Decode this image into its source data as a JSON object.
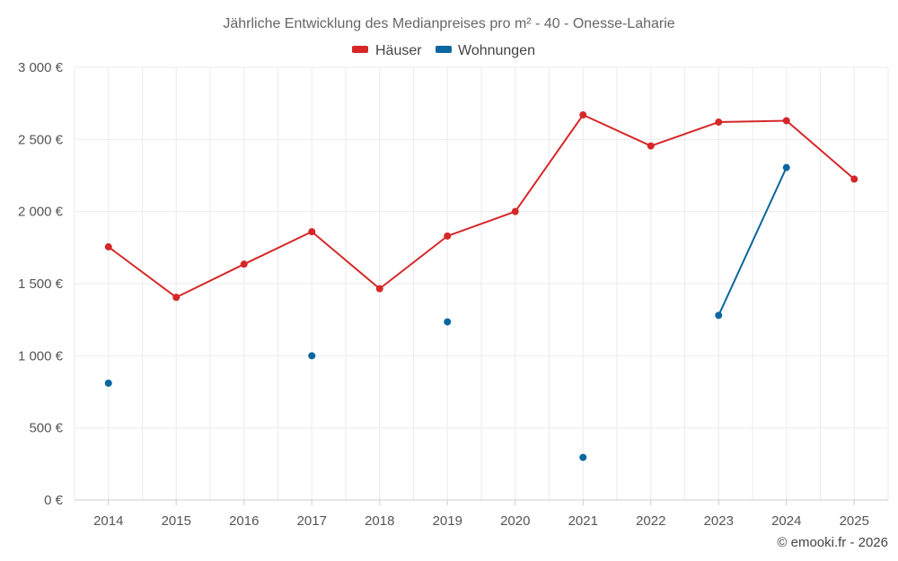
{
  "chart_data": {
    "type": "line",
    "title": "Jährliche Entwicklung des Medianpreises pro m² - 40 - Onesse-Laharie",
    "categories": [
      "2014",
      "2015",
      "2016",
      "2017",
      "2018",
      "2019",
      "2020",
      "2021",
      "2022",
      "2023",
      "2024",
      "2025"
    ],
    "ylim": [
      0,
      3000
    ],
    "yticks": [
      0,
      500,
      1000,
      1500,
      2000,
      2500,
      3000
    ],
    "ytick_labels": [
      "0 €",
      "500 €",
      "1 000 €",
      "1 500 €",
      "2 000 €",
      "2 500 €",
      "3 000 €"
    ],
    "grid": true,
    "legend_position": "top-center",
    "series": [
      {
        "name": "Häuser",
        "color": "#d62728",
        "values": [
          1755,
          1405,
          1635,
          1860,
          1465,
          1830,
          2000,
          2670,
          2455,
          2620,
          2630,
          2225
        ]
      },
      {
        "name": "Wohnungen",
        "color": "#0a66a0",
        "values": [
          810,
          null,
          null,
          1000,
          null,
          1235,
          null,
          295,
          null,
          1280,
          2305,
          null
        ]
      }
    ]
  },
  "credit": "© emooki.fr - 2026"
}
